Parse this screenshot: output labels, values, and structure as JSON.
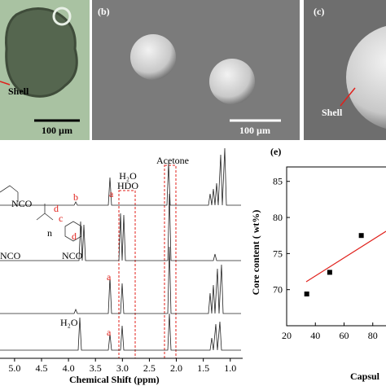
{
  "panels": {
    "a": {
      "shell_label": "Shell",
      "scale_bar": "100 µm"
    },
    "b": {
      "label": "(b)",
      "scale_bar": "100 µm"
    },
    "c": {
      "label": "(c)",
      "shell_label": "Shell"
    }
  },
  "nmr": {
    "x_label": "Chemical Shift (ppm)",
    "xlim": [
      5.27,
      0.77
    ],
    "xticks": [
      {
        "value": 5,
        "label": "5.0"
      },
      4.5,
      {
        "value": 4,
        "label": "4.0"
      },
      3.5,
      {
        "value": 3,
        "label": "3.0"
      },
      2.5,
      {
        "value": 2,
        "label": "2.0"
      },
      1.5,
      {
        "value": 1,
        "label": "1.0"
      }
    ],
    "acetone": "Acetone",
    "h2o": "H₂O",
    "hdo": "HDO",
    "annotations": [
      "a",
      "b",
      "c",
      "d",
      "n",
      "d",
      "NCO",
      "NCO",
      "NCO",
      "a",
      "H₂O",
      "a"
    ]
  },
  "chart_data": {
    "type": "scatter",
    "label": "(e)",
    "y_label": "Core content ( wt%)",
    "x_label": "Capsul",
    "x": [
      34,
      50,
      72
    ],
    "values": [
      69.4,
      72.4,
      77.5
    ],
    "color": "#000000",
    "fit_color": "#e0201b",
    "xlim": [
      20,
      100
    ],
    "xticks": [
      20,
      40,
      60,
      80
    ],
    "ylim": [
      65,
      87
    ],
    "yticks": [
      70,
      75,
      80,
      85
    ]
  }
}
